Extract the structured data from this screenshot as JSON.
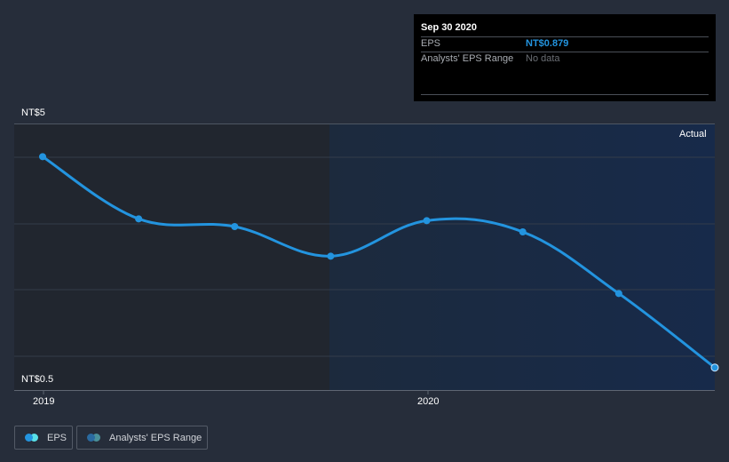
{
  "tooltip": {
    "date": "Sep 30 2020",
    "rows": [
      {
        "label": "EPS",
        "value": "NT$0.879",
        "color": "#2394df"
      },
      {
        "label": "Analysts' EPS Range",
        "value": "No data",
        "color": "#6b6f75"
      }
    ]
  },
  "axis": {
    "y_top_label": "NT$5",
    "y_bottom_label": "NT$0.5",
    "x_labels": [
      "2019",
      "2020"
    ],
    "region_label": "Actual"
  },
  "legend": {
    "items": [
      {
        "label": "EPS",
        "colors": [
          "#2394df",
          "#59e0e8"
        ]
      },
      {
        "label": "Analysts' EPS Range",
        "colors": [
          "#2a6aa0",
          "#4a9099"
        ]
      }
    ]
  },
  "colors": {
    "background": "#262d3a",
    "past_region": "#21262f",
    "actual_region_left": "#1c2a3d",
    "actual_region_right": "#172a4a",
    "line": "#2394df",
    "grid": "#333c4a"
  },
  "chart_data": {
    "type": "line",
    "title": "",
    "xlabel": "",
    "ylabel": "EPS (NT$)",
    "ylim": [
      0.5,
      5
    ],
    "x": [
      "Dec 2018",
      "Mar 2019",
      "Jun 2019",
      "Sep 2019",
      "Dec 2019",
      "Mar 2020",
      "Jun 2020",
      "Sep 2020"
    ],
    "series": [
      {
        "name": "EPS",
        "values": [
          4.44,
          3.39,
          3.26,
          2.76,
          3.36,
          3.17,
          2.13,
          0.879
        ]
      }
    ],
    "x_tick_labels": [
      "2019",
      "2020"
    ],
    "y_tick_labels": [
      "NT$0.5",
      "NT$5"
    ],
    "annotations": [
      "Actual"
    ],
    "legend": [
      "EPS",
      "Analysts' EPS Range"
    ],
    "legend_position": "bottom-left",
    "grid": true
  }
}
